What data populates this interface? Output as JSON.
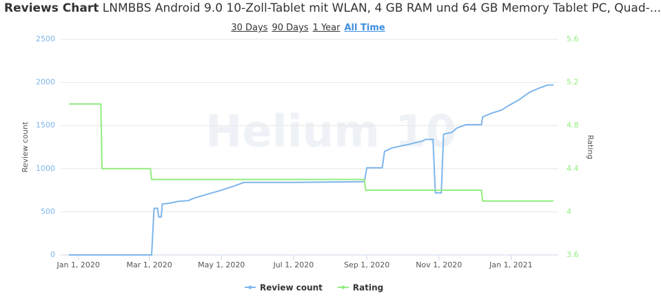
{
  "header": {
    "title": "Reviews Chart",
    "product": "LNMBBS Android 9.0 10-Zoll-Tablet mit WLAN, 4 GB RAM und 64 GB Memory Tablet PC, Quad-..."
  },
  "range_buttons": [
    "30 Days",
    "90 Days",
    "1 Year",
    "All Time"
  ],
  "active_range": 3,
  "watermark": "Helium 10",
  "chart_data": {
    "type": "line",
    "ylabel": "Review count",
    "y2label": "Rating",
    "xlim": [
      "2019-12-24",
      "2021-02-10"
    ],
    "xticks": [
      {
        "value": "2020-01-01",
        "label": "Jan 1, 2020"
      },
      {
        "value": "2020-03-01",
        "label": "Mar 1, 2020"
      },
      {
        "value": "2020-05-01",
        "label": "May 1, 2020"
      },
      {
        "value": "2020-07-01",
        "label": "Jul 1, 2020"
      },
      {
        "value": "2020-09-01",
        "label": "Sep 1, 2020"
      },
      {
        "value": "2020-11-01",
        "label": "Nov 1, 2020"
      },
      {
        "value": "2021-01-01",
        "label": "Jan 1, 2021"
      }
    ],
    "ylim": [
      0,
      2500
    ],
    "yticks": [
      0,
      500,
      1000,
      1500,
      2000,
      2500
    ],
    "y2lim": [
      3.6,
      5.6
    ],
    "y2ticks": [
      3.6,
      4,
      4.4,
      4.8,
      5.2,
      5.6
    ],
    "grid": true,
    "legend": "bottom",
    "series": [
      {
        "name": "Review count",
        "color": "#7cb5ec",
        "x": [
          "2019-12-24",
          "2020-03-03",
          "2020-03-05",
          "2020-03-08",
          "2020-03-09",
          "2020-03-11",
          "2020-03-12",
          "2020-03-18",
          "2020-03-25",
          "2020-04-03",
          "2020-04-08",
          "2020-04-18",
          "2020-05-01",
          "2020-05-12",
          "2020-05-20",
          "2020-07-01",
          "2020-08-30",
          "2020-09-01",
          "2020-09-14",
          "2020-09-16",
          "2020-09-22",
          "2020-09-29",
          "2020-10-06",
          "2020-10-12",
          "2020-10-18",
          "2020-10-21",
          "2020-10-27",
          "2020-10-29",
          "2020-11-03",
          "2020-11-05",
          "2020-11-12",
          "2020-11-16",
          "2020-11-24",
          "2020-12-07",
          "2020-12-08",
          "2020-12-15",
          "2020-12-24",
          "2020-12-31",
          "2021-01-08",
          "2021-01-16",
          "2021-01-24",
          "2021-02-01",
          "2021-02-06"
        ],
        "values": [
          0,
          0,
          540,
          540,
          440,
          440,
          590,
          600,
          620,
          630,
          660,
          700,
          750,
          800,
          840,
          840,
          850,
          1010,
          1010,
          1200,
          1240,
          1260,
          1280,
          1300,
          1320,
          1340,
          1340,
          720,
          720,
          1400,
          1420,
          1470,
          1510,
          1510,
          1600,
          1640,
          1680,
          1740,
          1800,
          1880,
          1930,
          1970,
          1970
        ]
      },
      {
        "name": "Rating",
        "color": "#90ed7d",
        "axis": "y2",
        "x": [
          "2019-12-24",
          "2020-01-20",
          "2020-01-21",
          "2020-03-02",
          "2020-03-03",
          "2020-08-30",
          "2020-08-31",
          "2020-12-07",
          "2020-12-08",
          "2021-02-06"
        ],
        "values": [
          5,
          5,
          4.4,
          4.4,
          4.3,
          4.3,
          4.2,
          4.2,
          4.1,
          4.1
        ]
      }
    ]
  }
}
